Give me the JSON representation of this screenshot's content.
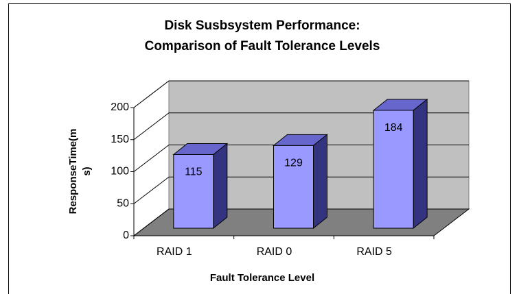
{
  "chart_data": {
    "type": "bar3d",
    "title": [
      "Disk Susbsystem Performance:",
      "Comparison of Fault Tolerance Levels"
    ],
    "x_label": "Fault Tolerance Level",
    "y_label": [
      "ResponseTime(m",
      "s)"
    ],
    "categories": [
      "RAID 1",
      "RAID 0",
      "RAID 5"
    ],
    "values": [
      115,
      129,
      184
    ],
    "color": "#9999ff",
    "ylim": [
      0,
      200
    ],
    "yticks": [
      0,
      50,
      100,
      150,
      200
    ],
    "grid": true
  }
}
